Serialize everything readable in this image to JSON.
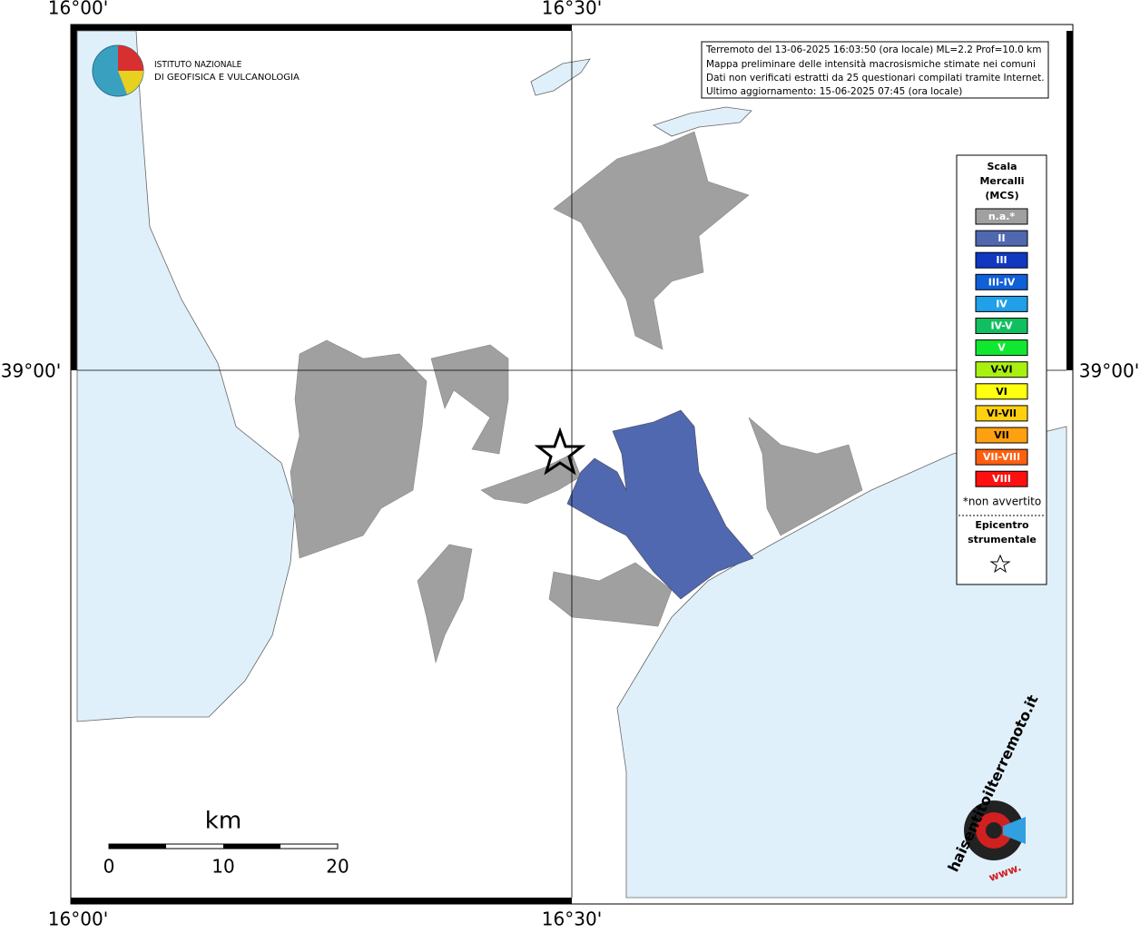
{
  "map": {
    "grid_labels": {
      "lon_left": "16°00'",
      "lon_mid": "16°30'",
      "lat": "39°00'"
    },
    "institute": [
      "ISTITUTO NAZIONALE",
      "DI GEOFISICA E VULCANOLOGIA"
    ],
    "info": [
      "Terremoto del 13-06-2025 16:03:50 (ora locale) ML=2.2 Prof=10.0 km",
      "Mappa preliminare delle intensità macrosismiche stimate nei comuni",
      "Dati non verificati estratti da 25 questionari compilati tramite Internet.",
      "Ultimo aggiornamento: 15-06-2025 07:45 (ora locale)"
    ],
    "legend": {
      "title": [
        "Scala",
        "Mercalli",
        "(MCS)"
      ],
      "items": [
        {
          "label": "n.a.*",
          "color": "#a0a0a0"
        },
        {
          "label": "II",
          "color": "#5068b0"
        },
        {
          "label": "III",
          "color": "#1038c0"
        },
        {
          "label": "III-IV",
          "color": "#1060d8"
        },
        {
          "label": "IV",
          "color": "#20a0e8"
        },
        {
          "label": "IV-V",
          "color": "#10c060"
        },
        {
          "label": "V",
          "color": "#10e830"
        },
        {
          "label": "V-VI",
          "color": "#a8f010"
        },
        {
          "label": "VI",
          "color": "#ffff10"
        },
        {
          "label": "VI-VII",
          "color": "#ffd010"
        },
        {
          "label": "VII",
          "color": "#ffa010"
        },
        {
          "label": "VII-VIII",
          "color": "#ff6010"
        },
        {
          "label": "VIII",
          "color": "#ff1010"
        }
      ],
      "note": "*non avvertito",
      "epicenter": [
        "Epicentro",
        "strumentale"
      ]
    },
    "scale": {
      "unit": "km",
      "labels": [
        "0",
        "10",
        "20"
      ]
    },
    "site_logo": {
      "name": "haisentitoilterremoto.it",
      "prefix": "www."
    }
  }
}
